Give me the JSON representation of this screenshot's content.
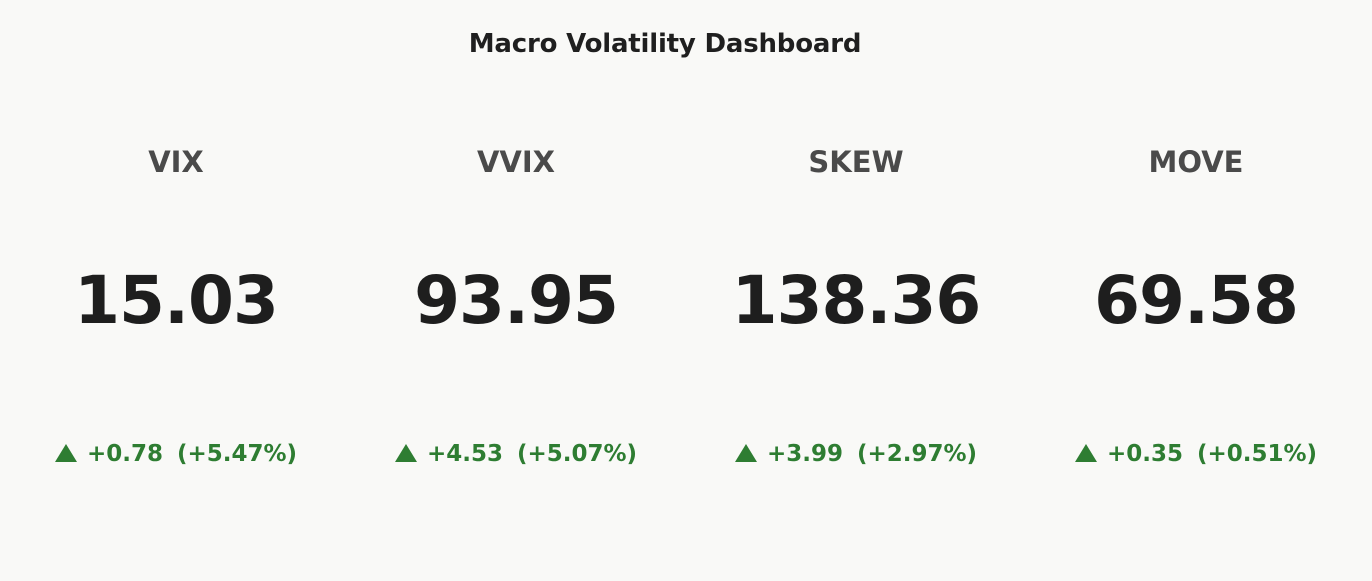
{
  "dashboard": {
    "title": "Macro Volatility Dashboard",
    "colors": {
      "background": "#f9f9f7",
      "title": "#1f1f1f",
      "label": "#4a4a4a",
      "value": "#1e1e1e",
      "positive": "#2e7d32"
    },
    "tiles": [
      {
        "name": "VIX",
        "value": "15.03",
        "change": "+0.78",
        "change_pct": "(+5.47%)",
        "direction_icon": "triangle-up-icon"
      },
      {
        "name": "VVIX",
        "value": "93.95",
        "change": "+4.53",
        "change_pct": "(+5.07%)",
        "direction_icon": "triangle-up-icon"
      },
      {
        "name": "SKEW",
        "value": "138.36",
        "change": "+3.99",
        "change_pct": "(+2.97%)",
        "direction_icon": "triangle-up-icon"
      },
      {
        "name": "MOVE",
        "value": "69.58",
        "change": "+0.35",
        "change_pct": "(+0.51%)",
        "direction_icon": "triangle-up-icon"
      }
    ]
  }
}
